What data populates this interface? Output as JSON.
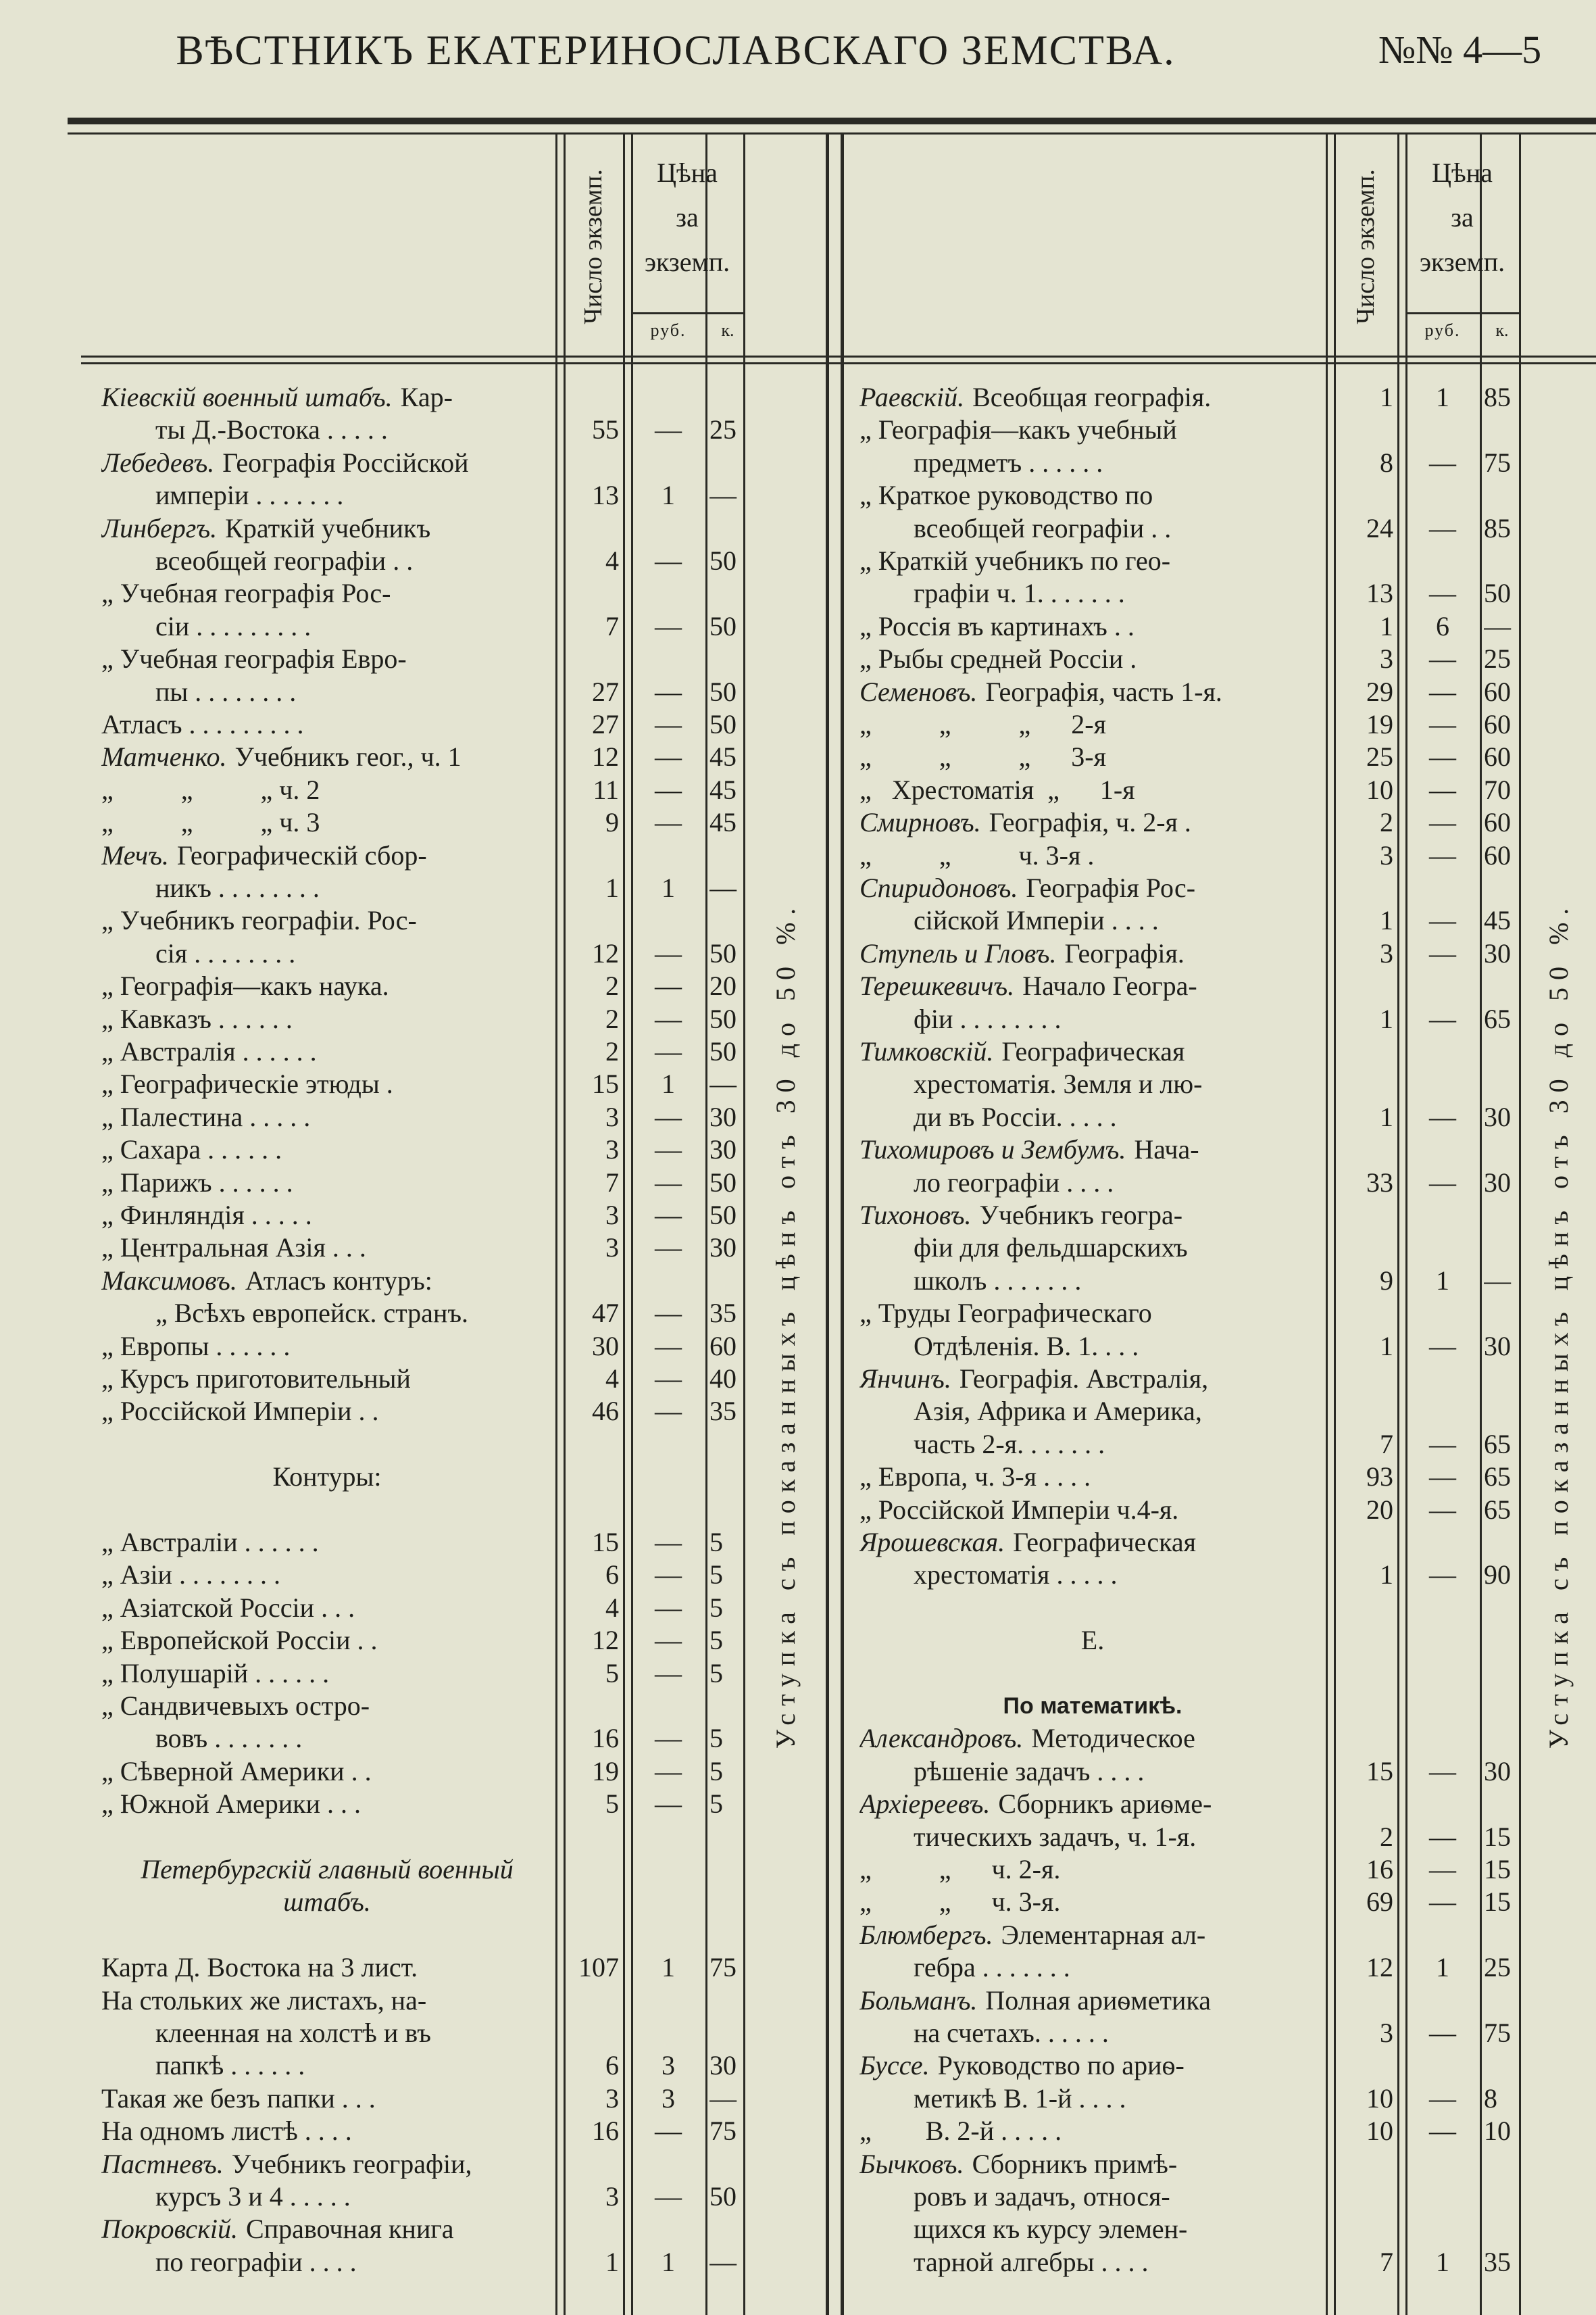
{
  "header": {
    "title": "ВѢСТНИКЪ ЕКАТЕРИНОСЛАВСКАГО ЗЕМСТВА.",
    "issue": "№№ 4—5"
  },
  "columns": {
    "count": "Число экземп.",
    "price": [
      "Цѣна",
      "за",
      "экземп."
    ],
    "rub": "руб.",
    "kop": "к."
  },
  "discount": "Уступка съ показанныхъ цѣнъ отъ 30 до 50 %.",
  "left": {
    "rows": [
      {
        "author": "Кіевскій военный штабъ.",
        "text": "Кар-"
      },
      {
        "text": "ты Д.-Востока . . . . .",
        "count": 55,
        "rub": "—",
        "kop": 25
      },
      {
        "author": "Лебедевъ.",
        "text": "Географія Россійской"
      },
      {
        "text": "имперіи . . . . . . .",
        "count": 13,
        "rub": 1,
        "kop": "—"
      },
      {
        "author": "Линбергъ.",
        "text": "Краткій учебникъ"
      },
      {
        "text": "всеобщей географіи . .",
        "count": 4,
        "rub": "—",
        "kop": 50
      },
      {
        "text": "„ Учебная географія Рос-"
      },
      {
        "text": "сіи . . . . . . . . .",
        "count": 7,
        "rub": "—",
        "kop": 50
      },
      {
        "text": "„ Учебная географія Евро-"
      },
      {
        "text": "пы . . . . . . . .",
        "count": 27,
        "rub": "—",
        "kop": 50
      },
      {
        "text": "Атласъ . . . . . . . . .",
        "count": 27,
        "rub": "—",
        "kop": 50
      },
      {
        "author": "Матченко.",
        "text": "Учебникъ геог., ч. 1",
        "count": 12,
        "rub": "—",
        "kop": 45
      },
      {
        "text": "„          „          „ ч. 2",
        "count": 11,
        "rub": "—",
        "kop": 45
      },
      {
        "text": "„          „          „ ч. 3",
        "count": 9,
        "rub": "—",
        "kop": 45
      },
      {
        "author": "Мечъ.",
        "text": "Географическій сбор-"
      },
      {
        "text": "никъ . . . . . . . .",
        "count": 1,
        "rub": 1,
        "kop": "—"
      },
      {
        "text": "„ Учебникъ географіи. Рос-"
      },
      {
        "text": "сія . . . . . . . .",
        "count": 12,
        "rub": "—",
        "kop": 50
      },
      {
        "text": "„ Географія—какъ наука.",
        "count": 2,
        "rub": "—",
        "kop": 20
      },
      {
        "text": "„ Кавказъ . . . . . .",
        "count": 2,
        "rub": "—",
        "kop": 50
      },
      {
        "text": "„ Австралія . . . . . .",
        "count": 2,
        "rub": "—",
        "kop": 50
      },
      {
        "text": "„ Географическіе этюды .",
        "count": 15,
        "rub": 1,
        "kop": "—"
      },
      {
        "text": "„ Палестина . . . . .",
        "count": 3,
        "rub": "—",
        "kop": 30
      },
      {
        "text": "„ Сахара . . . . . .",
        "count": 3,
        "rub": "—",
        "kop": 30
      },
      {
        "text": "„ Парижъ . . . . . .",
        "count": 7,
        "rub": "—",
        "kop": 50
      },
      {
        "text": "„ Финляндія . . . . .",
        "count": 3,
        "rub": "—",
        "kop": 50
      },
      {
        "text": "„ Центральная Азія . . .",
        "count": 3,
        "rub": "—",
        "kop": 30
      },
      {
        "author": "Максимовъ.",
        "text": "Атласъ контуръ:"
      },
      {
        "text": "„ Всѣхъ европейск. странъ.",
        "count": 47,
        "rub": "—",
        "kop": 35
      },
      {
        "text": "„ Европы . . . . . .",
        "count": 30,
        "rub": "—",
        "kop": 60
      },
      {
        "text": "„ Курсъ приготовительный",
        "count": 4,
        "rub": "—",
        "kop": 40
      },
      {
        "text": "„ Россійской Имперіи . .",
        "count": 46,
        "rub": "—",
        "kop": 35
      },
      {
        "heading": [
          "Контуры:"
        ],
        "style": "plain"
      },
      {
        "text": "„ Австраліи . . . . . .",
        "count": 15,
        "rub": "—",
        "kop": 5
      },
      {
        "text": "„ Азіи . . . . . . . .",
        "count": 6,
        "rub": "—",
        "kop": 5
      },
      {
        "text": "„ Азіатской Россіи . . .",
        "count": 4,
        "rub": "—",
        "kop": 5
      },
      {
        "text": "„ Европейской Россіи . .",
        "count": 12,
        "rub": "—",
        "kop": 5
      },
      {
        "text": "„ Полушарій . . . . . .",
        "count": 5,
        "rub": "—",
        "kop": 5
      },
      {
        "text": "„ Сандвичевыхъ остро-"
      },
      {
        "text": "вовъ . . . . . . .",
        "count": 16,
        "rub": "—",
        "kop": 5
      },
      {
        "text": "„ Сѣверной Америки . .",
        "count": 19,
        "rub": "—",
        "kop": 5
      },
      {
        "text": "„ Южной Америки . . .",
        "count": 5,
        "rub": "—",
        "kop": 5
      },
      {
        "heading": [
          "Петербургскій главный военный",
          "штабъ."
        ],
        "style": "italic"
      },
      {
        "text": "Карта Д. Востока на 3 лист.",
        "count": 107,
        "rub": 1,
        "kop": 75
      },
      {
        "text": "На стольких же листахъ, на-"
      },
      {
        "text": "клеенная на холстѣ и въ"
      },
      {
        "text": "папкѣ . . . . . .",
        "count": 6,
        "rub": 3,
        "kop": 30
      },
      {
        "text": "Такая же безъ папки . . .",
        "count": 3,
        "rub": 3,
        "kop": "—"
      },
      {
        "text": "На одномъ листѣ . . . .",
        "count": 16,
        "rub": "—",
        "kop": 75
      },
      {
        "author": "Пастневъ.",
        "text": "Учебникъ географіи,"
      },
      {
        "text": "курсъ 3 и 4 . . . . .",
        "count": 3,
        "rub": "—",
        "kop": 50
      },
      {
        "author": "Покровскій.",
        "text": "Справочная книга"
      },
      {
        "text": "по географіи . . . .",
        "count": 1,
        "rub": 1,
        "kop": "—"
      }
    ]
  },
  "right": {
    "rows": [
      {
        "author": "Раевскій.",
        "text": "Всеобщая географія.",
        "count": 1,
        "rub": 1,
        "kop": 85
      },
      {
        "text": "„ Географія—какъ учебный"
      },
      {
        "text": "предметъ . . . . . .",
        "count": 8,
        "rub": "—",
        "kop": 75
      },
      {
        "text": "„ Краткое руководство по"
      },
      {
        "text": "всеобщей географіи . .",
        "count": 24,
        "rub": "—",
        "kop": 85
      },
      {
        "text": "„ Краткій учебникъ по гео-"
      },
      {
        "text": "графіи ч. 1. . . . . . .",
        "count": 13,
        "rub": "—",
        "kop": 50
      },
      {
        "text": "„ Россія въ картинахъ . .",
        "count": 1,
        "rub": 6,
        "kop": "—"
      },
      {
        "text": "„ Рыбы средней Россіи .",
        "count": 3,
        "rub": "—",
        "kop": 25
      },
      {
        "author": "Семеновъ.",
        "text": "Географія, часть 1-я.",
        "count": 29,
        "rub": "—",
        "kop": 60
      },
      {
        "text": "„          „          „      2-я",
        "count": 19,
        "rub": "—",
        "kop": 60
      },
      {
        "text": "„          „          „      3-я",
        "count": 25,
        "rub": "—",
        "kop": 60
      },
      {
        "text": "„   Хрестоматія  „      1-я",
        "count": 10,
        "rub": "—",
        "kop": 70
      },
      {
        "author": "Смирновъ.",
        "text": "Географія, ч. 2-я .",
        "count": 2,
        "rub": "—",
        "kop": 60
      },
      {
        "text": "„          „          ч. 3-я .",
        "count": 3,
        "rub": "—",
        "kop": 60
      },
      {
        "author": "Спиридоновъ.",
        "text": "Географія Рос-"
      },
      {
        "text": "сійской Имперіи . . . .",
        "count": 1,
        "rub": "—",
        "kop": 45
      },
      {
        "author": "Ступель и Гловъ.",
        "text": "Географія.",
        "count": 3,
        "rub": "—",
        "kop": 30
      },
      {
        "author": "Терешкевичъ.",
        "text": "Начало Геогра-"
      },
      {
        "text": "фіи . . . . . . . .",
        "count": 1,
        "rub": "—",
        "kop": 65
      },
      {
        "author": "Тимковскій.",
        "text": "Географическая"
      },
      {
        "text": "хрестоматія. Земля и лю-"
      },
      {
        "text": "ди въ Россіи. . . . .",
        "count": 1,
        "rub": "—",
        "kop": 30
      },
      {
        "author": "Тихомировъ и Зембумъ.",
        "text": "Нача-"
      },
      {
        "text": "ло географіи . . . .",
        "count": 33,
        "rub": "—",
        "kop": 30
      },
      {
        "author": "Тихоновъ.",
        "text": "Учебникъ геогра-"
      },
      {
        "text": "фіи для фельдшарскихъ"
      },
      {
        "text": "школъ . . . . . . .",
        "count": 9,
        "rub": 1,
        "kop": "—"
      },
      {
        "text": "„ Труды Географическаго"
      },
      {
        "text": "Отдѣленія. В. 1. . . .",
        "count": 1,
        "rub": "—",
        "kop": 30
      },
      {
        "author": "Янчинъ.",
        "text": "Географія. Австралія,"
      },
      {
        "text": "Азія, Африка и Америка,"
      },
      {
        "text": "часть 2-я. . . . . . .",
        "count": 7,
        "rub": "—",
        "kop": 65
      },
      {
        "text": "„ Европа, ч. 3-я . . . .",
        "count": 93,
        "rub": "—",
        "kop": 65
      },
      {
        "text": "„ Россійской Имперіи ч.4-я.",
        "count": 20,
        "rub": "—",
        "kop": 65
      },
      {
        "author": "Ярошевская.",
        "text": "Географическая"
      },
      {
        "text": "хрестоматія . . . . .",
        "count": 1,
        "rub": "—",
        "kop": 90
      },
      {
        "heading": [
          "Е."
        ],
        "style": "plain"
      },
      {
        "heading": [
          "По математикѣ."
        ],
        "style": "bold"
      },
      {
        "author": "Александровъ.",
        "text": "Методическое"
      },
      {
        "text": "рѣшеніе задачъ . . . .",
        "count": 15,
        "rub": "—",
        "kop": 30
      },
      {
        "author": "Архіереевъ.",
        "text": "Сборникъ ариѳме-"
      },
      {
        "text": "тическихъ задачъ, ч. 1-я.",
        "count": 2,
        "rub": "—",
        "kop": 15
      },
      {
        "text": "„          „      ч. 2-я.",
        "count": 16,
        "rub": "—",
        "kop": 15
      },
      {
        "text": "„          „      ч. 3-я.",
        "count": 69,
        "rub": "—",
        "kop": 15
      },
      {
        "author": "Блюмбергъ.",
        "text": "Элементарная ал-"
      },
      {
        "text": "гебра . . . . . . .",
        "count": 12,
        "rub": 1,
        "kop": 25
      },
      {
        "author": "Больманъ.",
        "text": "Полная ариѳметика"
      },
      {
        "text": "на счетахъ. . . . . .",
        "count": 3,
        "rub": "—",
        "kop": 75
      },
      {
        "author": "Буссе.",
        "text": "Руководство по ариѳ-"
      },
      {
        "text": "метикѣ В. 1-й . . . .",
        "count": 10,
        "rub": "—",
        "kop": 8
      },
      {
        "text": "„        В. 2-й . . . . .",
        "count": 10,
        "rub": "—",
        "kop": 10
      },
      {
        "author": "Бычковъ.",
        "text": "Сборникъ примѣ-"
      },
      {
        "text": "ровъ и задачъ, относя-"
      },
      {
        "text": "щихся къ курсу элемен-"
      },
      {
        "text": "тарной алгебры . . . .",
        "count": 7,
        "rub": 1,
        "kop": 35
      }
    ]
  }
}
